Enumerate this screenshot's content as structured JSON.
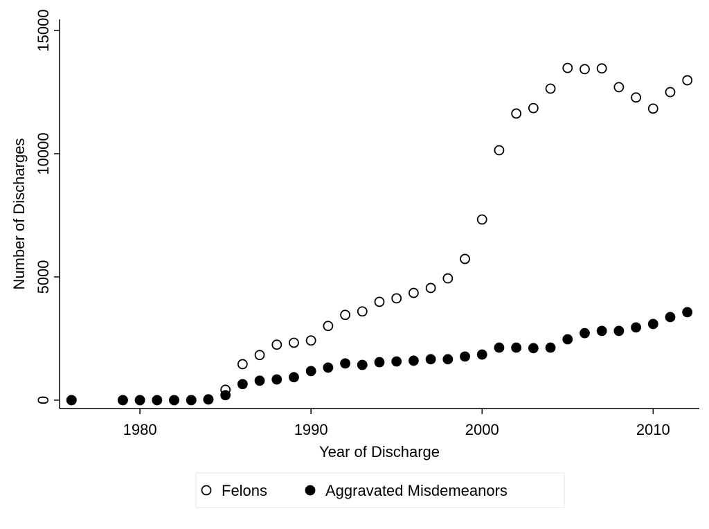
{
  "chart_data": {
    "type": "scatter",
    "x_label": "Year of Discharge",
    "y_label": "Number of Discharges",
    "x": [
      1976,
      1979,
      1980,
      1981,
      1982,
      1983,
      1984,
      1985,
      1986,
      1987,
      1988,
      1989,
      1990,
      1991,
      1992,
      1993,
      1994,
      1995,
      1996,
      1997,
      1998,
      1999,
      2000,
      2001,
      2002,
      2003,
      2004,
      2005,
      2006,
      2007,
      2008,
      2009,
      2010,
      2011,
      2012
    ],
    "series": [
      {
        "name": "Felons",
        "color": "#000000",
        "filled": false,
        "values": [
          0,
          0,
          0,
          0,
          0,
          0,
          30,
          420,
          1460,
          1830,
          2250,
          2330,
          2420,
          3010,
          3460,
          3600,
          3990,
          4130,
          4350,
          4550,
          4940,
          5730,
          7330,
          10140,
          11630,
          11850,
          12640,
          13480,
          13430,
          13460,
          12700,
          12280,
          11830,
          12500,
          12980
        ]
      },
      {
        "name": "Aggravated Misdemeanors",
        "color": "#000000",
        "filled": true,
        "values": [
          0,
          0,
          0,
          0,
          0,
          0,
          30,
          200,
          650,
          790,
          840,
          930,
          1180,
          1320,
          1490,
          1430,
          1540,
          1570,
          1600,
          1660,
          1660,
          1770,
          1850,
          2130,
          2130,
          2110,
          2130,
          2470,
          2720,
          2810,
          2810,
          2950,
          3090,
          3370,
          3570
        ]
      }
    ],
    "xlim": [
      1975.3,
      2012.7
    ],
    "xticks": [
      1980,
      1990,
      2000,
      2010
    ],
    "ylim": [
      -340,
      15450
    ],
    "yticks": [
      0,
      5000,
      10000,
      15000
    ],
    "grid": false,
    "legend": "bottom"
  }
}
